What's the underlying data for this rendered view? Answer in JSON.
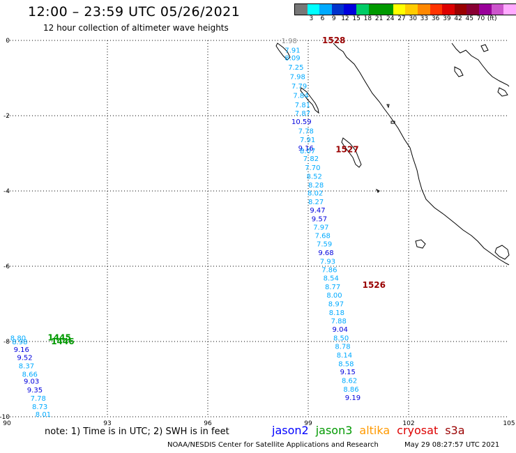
{
  "title": "12:00 – 23:59 UTC 05/26/2021",
  "subtitle": "12 hour collection of altimeter wave heights",
  "legend": {
    "colors": [
      "#777777",
      "#00ffff",
      "#00aaff",
      "#0033cc",
      "#0000dd",
      "#00cc66",
      "#009900",
      "#009900",
      "#ffff00",
      "#ffcc00",
      "#ff8800",
      "#ff3300",
      "#dd0000",
      "#990000",
      "#880033",
      "#990099",
      "#cc55cc",
      "#ffaaff",
      "#000000"
    ],
    "labels": [
      "3",
      "6",
      "9",
      "12",
      "15",
      "18",
      "21",
      "24",
      "27",
      "30",
      "33",
      "36",
      "39",
      "42",
      "45",
      "70",
      "(ft)"
    ]
  },
  "axes": {
    "lat_ticks": [
      "0",
      "-2",
      "-4",
      "-6",
      "-8",
      "-10"
    ],
    "lon_ticks": [
      "90",
      "93",
      "96",
      "99",
      "102",
      "105"
    ]
  },
  "note": "note: 1) Time is in UTC; 2) SWH is in feet",
  "satellites": [
    {
      "name": "jason2",
      "color": "#0000ff"
    },
    {
      "name": "jason3",
      "color": "#009900"
    },
    {
      "name": "altika",
      "color": "#ff9900"
    },
    {
      "name": "cryosat",
      "color": "#dd0000"
    },
    {
      "name": "s3a",
      "color": "#990000"
    }
  ],
  "credit": "NOAA/NESDIS Center for Satellite Applications and Research",
  "credit_time": "May 29 08:27:57 UTC 2021",
  "pass_labels": [
    {
      "text": "1528",
      "lon": 99.0,
      "lat": 0.0,
      "color": "#990000"
    },
    {
      "text": "1527",
      "lon": 99.4,
      "lat": -2.9,
      "color": "#990000"
    },
    {
      "text": "1526",
      "lon": 100.2,
      "lat": -6.5,
      "color": "#990000"
    },
    {
      "text": "1445",
      "lon": 90.8,
      "lat": -7.9,
      "color": "#009900"
    },
    {
      "text": "1446",
      "lon": 90.9,
      "lat": -8.0,
      "color": "#009900"
    }
  ],
  "track_main": [
    {
      "v": "1.98",
      "lon": 98.2,
      "lat": 0.0,
      "c": "#888888"
    },
    {
      "v": "7.91",
      "lon": 98.3,
      "lat": -0.25,
      "c": "#00aaff"
    },
    {
      "v": "8.09",
      "lon": 98.3,
      "lat": -0.45,
      "c": "#00aaff"
    },
    {
      "v": "7.25",
      "lon": 98.4,
      "lat": -0.7,
      "c": "#00aaff"
    },
    {
      "v": "7.98",
      "lon": 98.45,
      "lat": -0.95,
      "c": "#00aaff"
    },
    {
      "v": "7.79",
      "lon": 98.5,
      "lat": -1.2,
      "c": "#00aaff"
    },
    {
      "v": "7.84",
      "lon": 98.55,
      "lat": -1.45,
      "c": "#00aaff"
    },
    {
      "v": "7.81",
      "lon": 98.6,
      "lat": -1.7,
      "c": "#00aaff"
    },
    {
      "v": "7.87",
      "lon": 98.6,
      "lat": -1.93,
      "c": "#00aaff"
    },
    {
      "v": "10.59",
      "lon": 98.5,
      "lat": -2.15,
      "c": "#0000dd"
    },
    {
      "v": "7.78",
      "lon": 98.7,
      "lat": -2.4,
      "c": "#00aaff"
    },
    {
      "v": "7.91",
      "lon": 98.75,
      "lat": -2.63,
      "c": "#00aaff"
    },
    {
      "v": "9.16",
      "lon": 98.7,
      "lat": -2.85,
      "c": "#0000dd"
    },
    {
      "v": "8.07",
      "lon": 98.75,
      "lat": -2.93,
      "c": "#00aaff"
    },
    {
      "v": "7.82",
      "lon": 98.85,
      "lat": -3.13,
      "c": "#00aaff"
    },
    {
      "v": "7.70",
      "lon": 98.9,
      "lat": -3.37,
      "c": "#00aaff"
    },
    {
      "v": "8.52",
      "lon": 98.95,
      "lat": -3.6,
      "c": "#00aaff"
    },
    {
      "v": "8.28",
      "lon": 99.0,
      "lat": -3.83,
      "c": "#00aaff"
    },
    {
      "v": "8.02",
      "lon": 98.98,
      "lat": -4.05,
      "c": "#00aaff"
    },
    {
      "v": "8.27",
      "lon": 99.0,
      "lat": -4.28,
      "c": "#00aaff"
    },
    {
      "v": "9.47",
      "lon": 99.05,
      "lat": -4.5,
      "c": "#0000dd"
    },
    {
      "v": "9.57",
      "lon": 99.1,
      "lat": -4.73,
      "c": "#0000dd"
    },
    {
      "v": "7.97",
      "lon": 99.15,
      "lat": -4.95,
      "c": "#00aaff"
    },
    {
      "v": "7.68",
      "lon": 99.2,
      "lat": -5.18,
      "c": "#00aaff"
    },
    {
      "v": "7.59",
      "lon": 99.25,
      "lat": -5.4,
      "c": "#00aaff"
    },
    {
      "v": "9.68",
      "lon": 99.3,
      "lat": -5.63,
      "c": "#0000dd"
    },
    {
      "v": "7.93",
      "lon": 99.35,
      "lat": -5.86,
      "c": "#00aaff"
    },
    {
      "v": "7.86",
      "lon": 99.4,
      "lat": -6.08,
      "c": "#00aaff"
    },
    {
      "v": "8.54",
      "lon": 99.45,
      "lat": -6.31,
      "c": "#00aaff"
    },
    {
      "v": "8.77",
      "lon": 99.5,
      "lat": -6.54,
      "c": "#00aaff"
    },
    {
      "v": "8.00",
      "lon": 99.55,
      "lat": -6.76,
      "c": "#00aaff"
    },
    {
      "v": "8.97",
      "lon": 99.6,
      "lat": -6.99,
      "c": "#00aaff"
    },
    {
      "v": "8.18",
      "lon": 99.62,
      "lat": -7.22,
      "c": "#00aaff"
    },
    {
      "v": "7.88",
      "lon": 99.68,
      "lat": -7.44,
      "c": "#00aaff"
    },
    {
      "v": "9.04",
      "lon": 99.72,
      "lat": -7.67,
      "c": "#0000dd"
    },
    {
      "v": "8.50",
      "lon": 99.75,
      "lat": -7.9,
      "c": "#00aaff"
    },
    {
      "v": "8.78",
      "lon": 99.8,
      "lat": -8.12,
      "c": "#00aaff"
    },
    {
      "v": "8.14",
      "lon": 99.85,
      "lat": -8.35,
      "c": "#00aaff"
    },
    {
      "v": "8.58",
      "lon": 99.9,
      "lat": -8.58,
      "c": "#00aaff"
    },
    {
      "v": "9.15",
      "lon": 99.95,
      "lat": -8.8,
      "c": "#0000dd"
    },
    {
      "v": "8.62",
      "lon": 100.0,
      "lat": -9.03,
      "c": "#00aaff"
    },
    {
      "v": "8.86",
      "lon": 100.05,
      "lat": -9.26,
      "c": "#00aaff"
    },
    {
      "v": "9.19",
      "lon": 100.1,
      "lat": -9.48,
      "c": "#0000dd"
    }
  ],
  "track_west": [
    {
      "v": "8.80",
      "lon": 90.1,
      "lat": -7.9,
      "c": "#00aaff"
    },
    {
      "v": "8.98",
      "lon": 90.15,
      "lat": -8.0,
      "c": "#00aaff"
    },
    {
      "v": "9.16",
      "lon": 90.2,
      "lat": -8.2,
      "c": "#0000dd"
    },
    {
      "v": "9.52",
      "lon": 90.3,
      "lat": -8.42,
      "c": "#0000dd"
    },
    {
      "v": "8.37",
      "lon": 90.35,
      "lat": -8.64,
      "c": "#00aaff"
    },
    {
      "v": "8.66",
      "lon": 90.45,
      "lat": -8.86,
      "c": "#00aaff"
    },
    {
      "v": "9.03",
      "lon": 90.5,
      "lat": -9.05,
      "c": "#0000dd"
    },
    {
      "v": "9.35",
      "lon": 90.6,
      "lat": -9.28,
      "c": "#0000dd"
    },
    {
      "v": "7.78",
      "lon": 90.7,
      "lat": -9.5,
      "c": "#00aaff"
    },
    {
      "v": "8.73",
      "lon": 90.75,
      "lat": -9.72,
      "c": "#00aaff"
    },
    {
      "v": "8.01",
      "lon": 90.85,
      "lat": -9.93,
      "c": "#00aaff"
    }
  ]
}
